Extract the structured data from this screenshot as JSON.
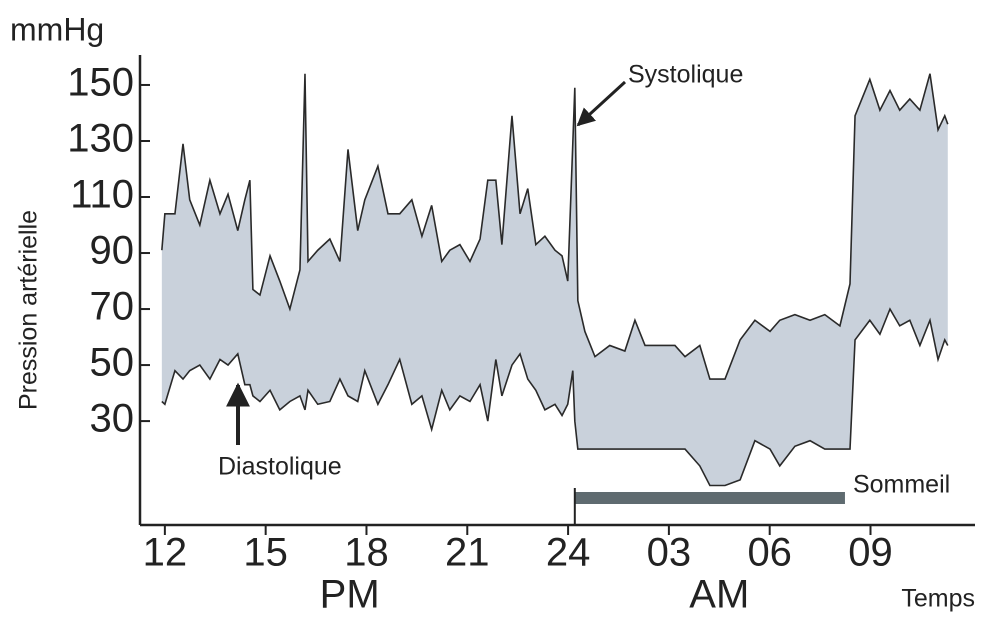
{
  "chart_data": {
    "type": "range-line",
    "y_unit": "mmHg",
    "ylabel": "Pression artérielle",
    "xlabel": "Temps",
    "period_labels": [
      {
        "label": "PM",
        "x": 17.5
      },
      {
        "label": "AM",
        "x": 28.5
      }
    ],
    "x": [
      11.91,
      12.0,
      12.3,
      12.54,
      12.74,
      13.04,
      13.34,
      13.64,
      13.88,
      14.17,
      14.38,
      14.53,
      14.62,
      14.83,
      15.13,
      15.42,
      15.72,
      16.02,
      16.17,
      16.26,
      16.55,
      16.91,
      17.21,
      17.45,
      17.74,
      17.95,
      18.34,
      18.64,
      18.99,
      19.35,
      19.65,
      19.94,
      20.24,
      20.48,
      20.78,
      21.08,
      21.38,
      21.61,
      21.85,
      22.03,
      22.33,
      22.57,
      22.8,
      23.04,
      23.31,
      23.61,
      23.82,
      23.99,
      24.14,
      24.2,
      24.29,
      24.5,
      24.8,
      25.24,
      25.69,
      25.99,
      26.29,
      26.73,
      27.18,
      27.48,
      27.92,
      28.22,
      28.67,
      29.12,
      29.56,
      30.01,
      30.3,
      30.75,
      31.2,
      31.64,
      32.09,
      32.39,
      32.54,
      32.98,
      33.28,
      33.58,
      33.87,
      34.17,
      34.47,
      34.77,
      35.01,
      35.21,
      35.3
    ],
    "series": [
      {
        "name": "Systolique",
        "color": "#2a2a2a",
        "values": [
          91,
          104,
          104,
          129,
          109,
          100,
          116,
          104,
          111,
          98,
          109,
          116,
          77,
          75,
          89,
          80,
          70,
          84,
          154,
          87,
          91,
          95,
          87,
          127,
          98,
          109,
          121,
          104,
          104,
          109,
          96,
          107,
          87,
          91,
          93,
          87,
          95,
          116,
          116,
          93,
          139,
          104,
          113,
          93,
          96,
          91,
          89,
          80,
          129,
          149,
          73,
          62,
          53,
          57,
          55,
          66,
          57,
          57,
          57,
          53,
          57,
          45,
          45,
          59,
          66,
          62,
          66,
          68,
          66,
          68,
          64,
          79,
          139,
          152,
          141,
          148,
          141,
          145,
          141,
          154,
          134,
          139,
          136
        ]
      },
      {
        "name": "Diastolique",
        "color": "#2a2a2a",
        "values": [
          37,
          36,
          48,
          45,
          48,
          50,
          45,
          52,
          50,
          54,
          43,
          43,
          39,
          37,
          41,
          34,
          37,
          39,
          34,
          41,
          36,
          37,
          45,
          39,
          37,
          48,
          36,
          43,
          52,
          36,
          39,
          27,
          41,
          34,
          39,
          37,
          43,
          30,
          52,
          39,
          50,
          54,
          45,
          41,
          34,
          36,
          32,
          36,
          48,
          30,
          20,
          20,
          20,
          20,
          20,
          20,
          20,
          20,
          20,
          20,
          14,
          7,
          7,
          9,
          23,
          20,
          14,
          21,
          23,
          20,
          20,
          20,
          59,
          66,
          61,
          70,
          64,
          66,
          57,
          66,
          52,
          59,
          57
        ]
      }
    ],
    "fill_color": "#c9d1db",
    "sleep": {
      "label": "Sommeil",
      "start": 24.2,
      "end": 32.24,
      "color": "#5f6b70"
    },
    "xlim": [
      11.26,
      36.11
    ],
    "xticks": [
      12,
      15,
      18,
      21,
      24,
      {
        "value": 27,
        "label": "03"
      },
      {
        "value": 30,
        "label": "06"
      },
      {
        "value": 33,
        "label": "09"
      }
    ],
    "ylim": [
      -7.1,
      160.7
    ],
    "yticks": [
      30,
      50,
      70,
      90,
      110,
      130,
      150
    ]
  }
}
